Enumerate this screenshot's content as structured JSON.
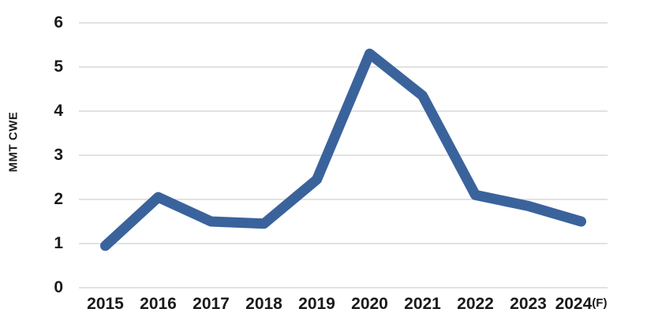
{
  "chart_data": {
    "type": "line",
    "title": "",
    "xlabel": "",
    "ylabel": "MMT CWE",
    "categories": [
      "2015",
      "2016",
      "2017",
      "2018",
      "2019",
      "2020",
      "2021",
      "2022",
      "2023",
      "2024(F)"
    ],
    "x_tick_labels": [
      {
        "text": "2015",
        "suffix": ""
      },
      {
        "text": "2016",
        "suffix": ""
      },
      {
        "text": "2017",
        "suffix": ""
      },
      {
        "text": "2018",
        "suffix": ""
      },
      {
        "text": "2019",
        "suffix": ""
      },
      {
        "text": "2020",
        "suffix": ""
      },
      {
        "text": "2021",
        "suffix": ""
      },
      {
        "text": "2022",
        "suffix": ""
      },
      {
        "text": "2023",
        "suffix": ""
      },
      {
        "text": "2024",
        "suffix": "(F)"
      }
    ],
    "series": [
      {
        "name": "MMT CWE",
        "values": [
          0.95,
          2.05,
          1.5,
          1.45,
          2.45,
          5.3,
          4.35,
          2.1,
          1.85,
          1.5
        ]
      }
    ],
    "y_ticks": [
      0,
      1,
      2,
      3,
      4,
      5,
      6
    ],
    "ylim": [
      0,
      6
    ],
    "grid": true,
    "legend": false,
    "line_color": "#3A639C",
    "line_width": 13,
    "gridline_color": "#D9D9D9",
    "text_color": "#1A1A1A"
  }
}
